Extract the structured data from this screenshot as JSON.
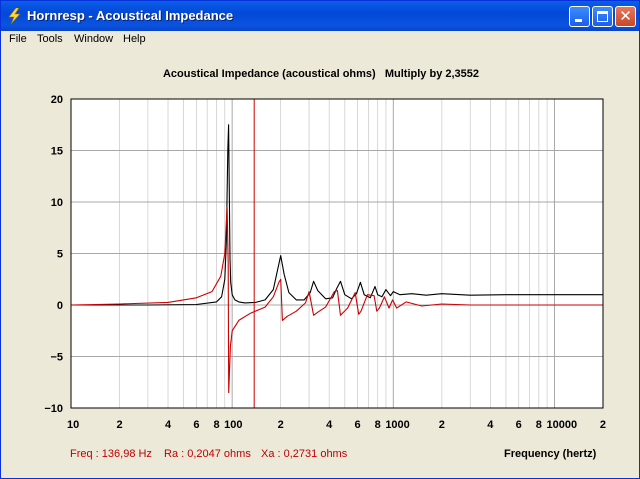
{
  "window": {
    "title": "Hornresp - Acoustical Impedance",
    "icon": "lightning-bolt-icon"
  },
  "controls": {
    "minimize_icon": "minimize-icon",
    "maximize_icon": "maximize-icon",
    "close_icon": "close-icon"
  },
  "menu": [
    "File",
    "Tools",
    "Window",
    "Help"
  ],
  "status": {
    "freq": "Freq : 136,98 Hz",
    "ra": "Ra : 0,2047 ohms",
    "xa": "Xa : 0,2731 ohms"
  },
  "chart_data": {
    "type": "line",
    "title": "Acoustical Impedance (acoustical ohms)   Multiply by 2,3552",
    "xlabel": "Frequency (hertz)",
    "ylabel": "",
    "xscale": "log",
    "xlim": [
      10,
      20000
    ],
    "ylim": [
      -10,
      20
    ],
    "yticks": [
      "20",
      "15",
      "10",
      "5",
      "0",
      "−5",
      "−10"
    ],
    "xticks": [
      "10",
      "2",
      "4",
      "6",
      "8",
      "100",
      "2",
      "4",
      "6",
      "8",
      "1000",
      "2",
      "4",
      "6",
      "8",
      "10000",
      "2"
    ],
    "grid": true,
    "cursor_frequency": 136.98,
    "colors": {
      "ra": "#000000",
      "xa": "#cc0000",
      "cursor": "#cc0000",
      "grid": "#c8c8c8",
      "plot_bg": "#ffffff"
    },
    "series": [
      {
        "key": "ra",
        "x": [
          10,
          30,
          60,
          80,
          86,
          90,
          92,
          94,
          95,
          96,
          97,
          98,
          100,
          104,
          110,
          120,
          140,
          160,
          180,
          192,
          200,
          210,
          225,
          250,
          280,
          305,
          320,
          340,
          380,
          420,
          445,
          470,
          500,
          550,
          590,
          625,
          660,
          720,
          770,
          800,
          850,
          900,
          960,
          1000,
          1100,
          1300,
          1600,
          2000,
          3000,
          5000,
          10000,
          20000
        ],
        "y": [
          0,
          0,
          0.05,
          0.3,
          0.8,
          2.5,
          6,
          15,
          17.5,
          11,
          4.5,
          2.2,
          1.0,
          0.5,
          0.3,
          0.2,
          0.25,
          0.5,
          1.5,
          3.5,
          4.8,
          3.0,
          1.2,
          0.5,
          0.5,
          1.2,
          2.3,
          1.4,
          0.6,
          0.7,
          1.6,
          2.3,
          1.0,
          0.6,
          1.1,
          2.2,
          1.0,
          0.7,
          1.8,
          1.0,
          0.8,
          1.5,
          0.9,
          1.3,
          1.0,
          1.1,
          0.95,
          1.1,
          0.95,
          1.0,
          1.0,
          1.0
        ]
      },
      {
        "key": "xa",
        "x": [
          10,
          20,
          40,
          60,
          75,
          85,
          90,
          93,
          94.5,
          95.2,
          96,
          97.5,
          100,
          110,
          130,
          160,
          180,
          195,
          200,
          205,
          220,
          250,
          285,
          300,
          320,
          340,
          380,
          430,
          450,
          470,
          520,
          580,
          610,
          630,
          690,
          760,
          790,
          820,
          880,
          940,
          990,
          1050,
          1200,
          1500,
          2000,
          3000,
          5000,
          10000,
          20000
        ],
        "y": [
          0,
          0.1,
          0.25,
          0.7,
          1.3,
          2.8,
          5,
          9.5,
          4,
          -8.5,
          -7,
          -4,
          -2.5,
          -1.5,
          -0.8,
          -0.2,
          0.8,
          2.2,
          2.5,
          -1.5,
          -1.1,
          -0.6,
          0.2,
          1.3,
          -1.0,
          -0.7,
          -0.2,
          1.3,
          1.4,
          -1.0,
          -0.3,
          1.2,
          -0.9,
          -0.6,
          1.0,
          0.9,
          -0.6,
          -0.3,
          0.8,
          -0.3,
          0.5,
          -0.3,
          0.3,
          -0.1,
          0.1,
          0,
          0,
          0,
          0
        ]
      }
    ]
  }
}
